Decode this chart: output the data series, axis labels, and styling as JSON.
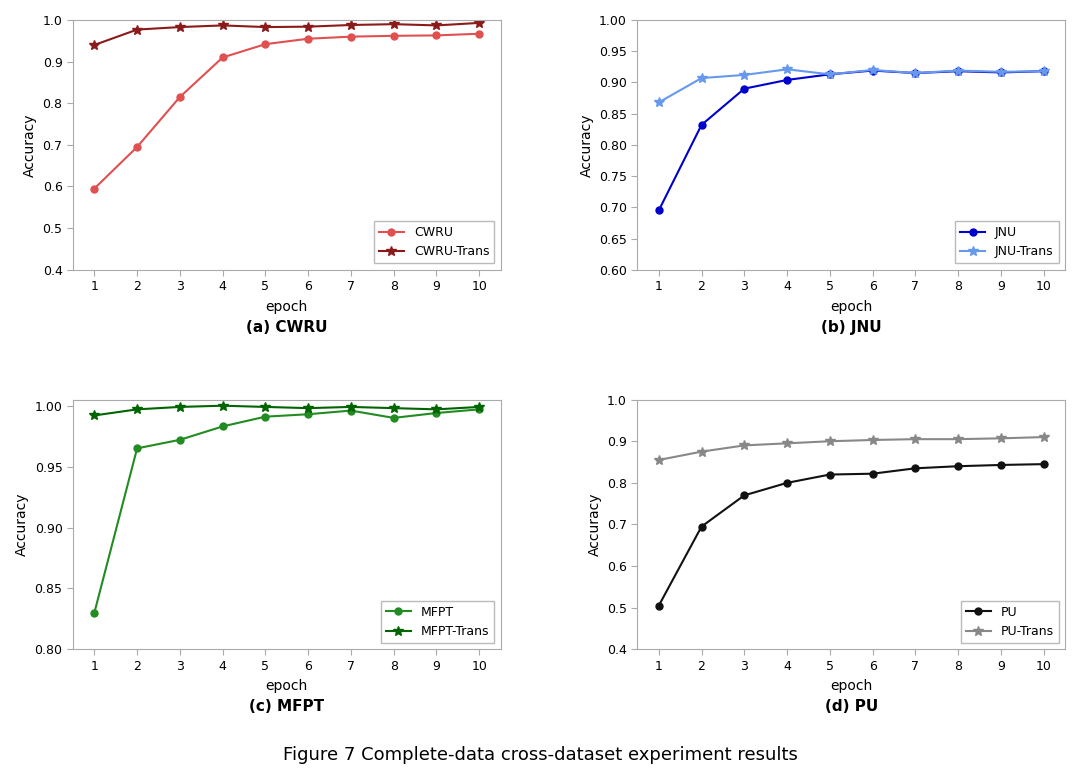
{
  "epochs": [
    1,
    2,
    3,
    4,
    5,
    6,
    7,
    8,
    9,
    10
  ],
  "cwru": [
    0.595,
    0.695,
    0.815,
    0.91,
    0.942,
    0.955,
    0.96,
    0.962,
    0.963,
    0.967
  ],
  "cwru_trans": [
    0.94,
    0.977,
    0.983,
    0.987,
    0.983,
    0.984,
    0.988,
    0.99,
    0.987,
    0.993
  ],
  "cwru_color": "#e05050",
  "cwru_trans_color": "#8b1a1a",
  "cwru_ylim": [
    0.4,
    1.0
  ],
  "cwru_yticks": [
    0.4,
    0.5,
    0.6,
    0.7,
    0.8,
    0.9,
    1.0
  ],
  "cwru_label": "(a) CWRU",
  "jnu": [
    0.695,
    0.832,
    0.89,
    0.904,
    0.913,
    0.919,
    0.915,
    0.918,
    0.916,
    0.918
  ],
  "jnu_trans": [
    0.868,
    0.907,
    0.912,
    0.921,
    0.913,
    0.92,
    0.915,
    0.919,
    0.917,
    0.918
  ],
  "jnu_color": "#0000cd",
  "jnu_trans_color": "#6699ee",
  "jnu_ylim": [
    0.6,
    1.0
  ],
  "jnu_yticks": [
    0.6,
    0.65,
    0.7,
    0.75,
    0.8,
    0.85,
    0.9,
    0.95,
    1.0
  ],
  "jnu_label": "(b) JNU",
  "mfpt": [
    0.83,
    0.965,
    0.972,
    0.983,
    0.991,
    0.993,
    0.996,
    0.99,
    0.994,
    0.997
  ],
  "mfpt_trans": [
    0.992,
    0.997,
    0.999,
    1.0,
    0.999,
    0.998,
    0.999,
    0.998,
    0.997,
    0.999
  ],
  "mfpt_color": "#228B22",
  "mfpt_trans_color": "#006400",
  "mfpt_ylim": [
    0.8,
    1.005
  ],
  "mfpt_yticks": [
    0.8,
    0.85,
    0.9,
    0.95,
    1.0
  ],
  "mfpt_label": "(c) MFPT",
  "pu": [
    0.505,
    0.695,
    0.77,
    0.8,
    0.82,
    0.822,
    0.835,
    0.84,
    0.843,
    0.845
  ],
  "pu_trans": [
    0.855,
    0.875,
    0.89,
    0.895,
    0.9,
    0.903,
    0.905,
    0.905,
    0.907,
    0.91
  ],
  "pu_color": "#111111",
  "pu_trans_color": "#888888",
  "pu_ylim": [
    0.4,
    1.0
  ],
  "pu_yticks": [
    0.4,
    0.5,
    0.6,
    0.7,
    0.8,
    0.9,
    1.0
  ],
  "pu_label": "(d) PU",
  "xlabel": "epoch",
  "ylabel": "Accuracy",
  "figure_title": "Figure 7 Complete-data cross-dataset experiment results",
  "bg_color": "#ffffff",
  "plot_bg_color": "#ffffff",
  "spine_color": "#aaaaaa"
}
